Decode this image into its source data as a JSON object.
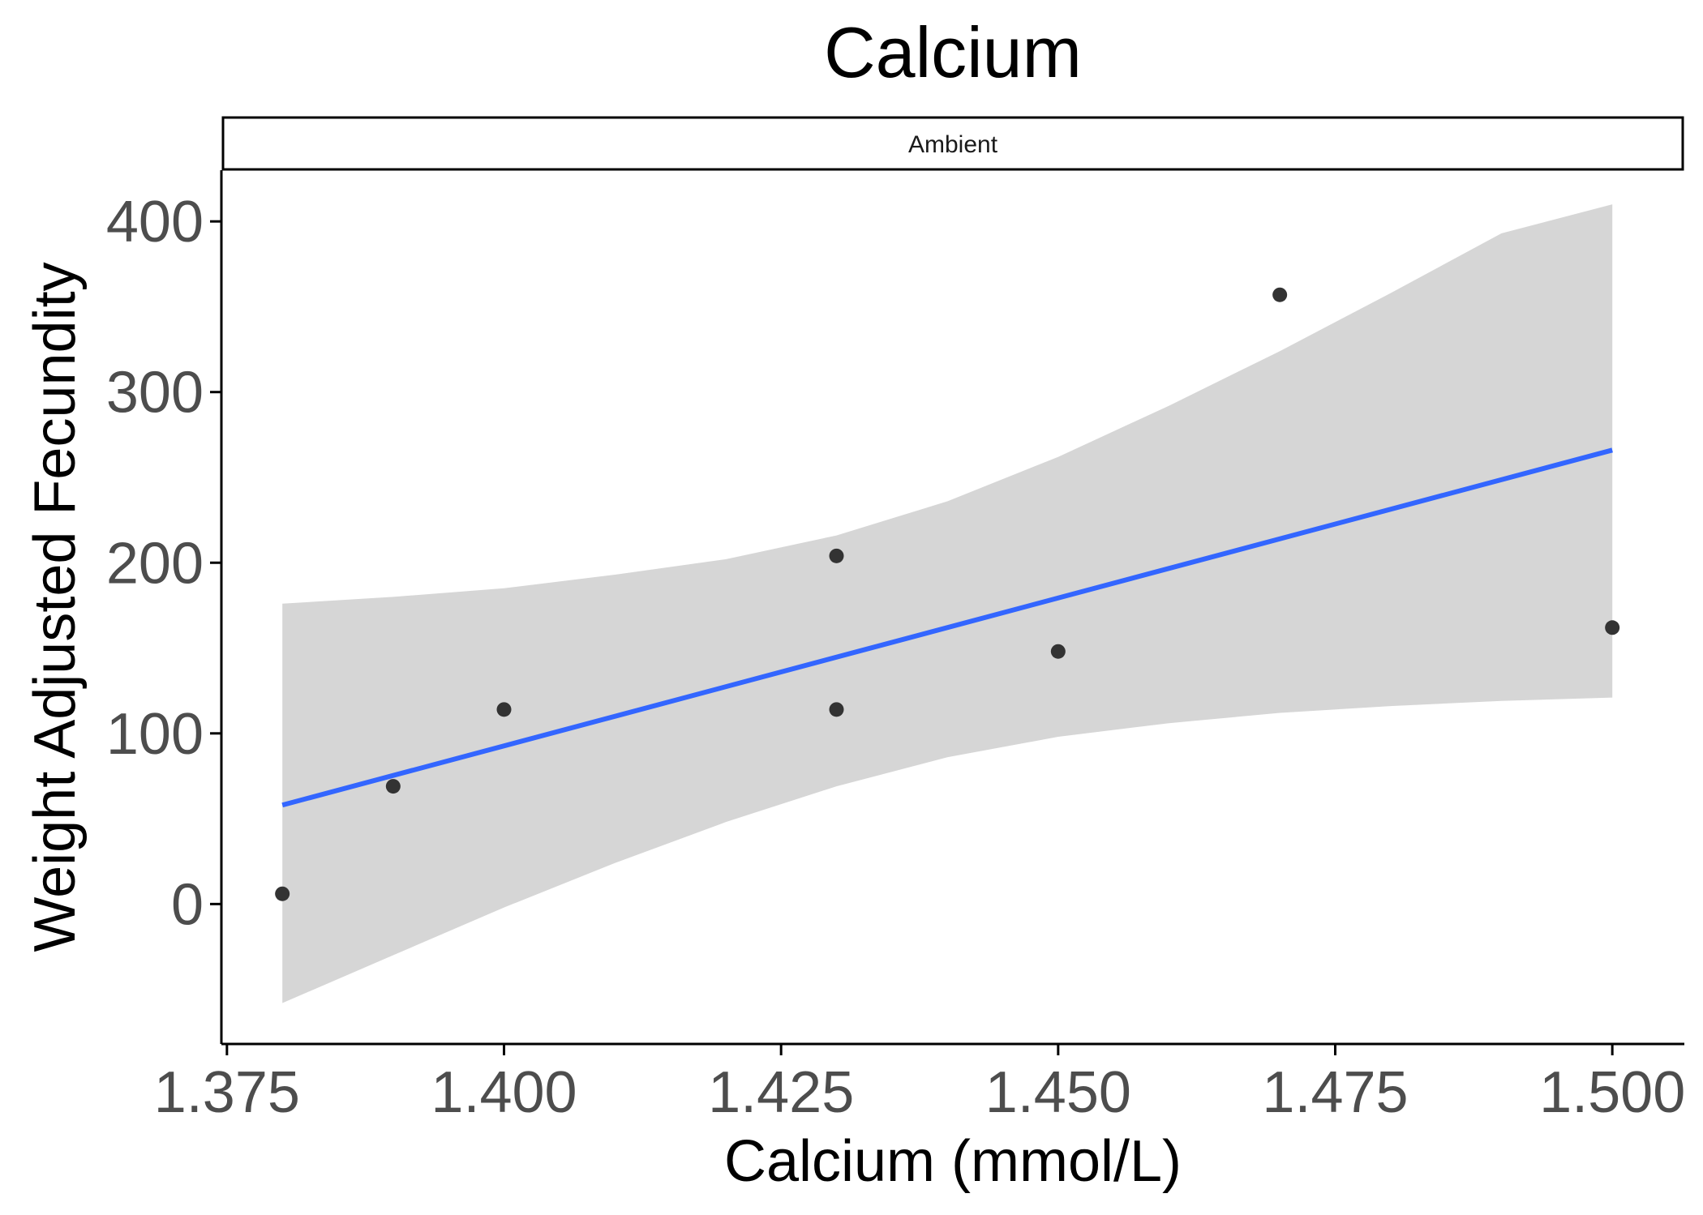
{
  "chart_data": {
    "type": "scatter",
    "title": "Calcium",
    "facet": "Ambient",
    "xlabel": "Calcium (mmol/L)",
    "ylabel": "Weight Adjusted Fecundity",
    "xlim": [
      1.3745,
      1.5065
    ],
    "ylim": [
      -82,
      430
    ],
    "x_ticks": [
      1.375,
      1.4,
      1.425,
      1.45,
      1.475,
      1.5
    ],
    "x_tick_labels": [
      "1.375",
      "1.400",
      "1.425",
      "1.450",
      "1.475",
      "1.500"
    ],
    "y_ticks": [
      0,
      100,
      200,
      300,
      400
    ],
    "y_tick_labels": [
      "0",
      "100",
      "200",
      "300",
      "400"
    ],
    "grid": false,
    "points": [
      {
        "x": 1.38,
        "y": 6
      },
      {
        "x": 1.39,
        "y": 69
      },
      {
        "x": 1.4,
        "y": 114
      },
      {
        "x": 1.43,
        "y": 204
      },
      {
        "x": 1.43,
        "y": 114
      },
      {
        "x": 1.45,
        "y": 148
      },
      {
        "x": 1.47,
        "y": 357
      },
      {
        "x": 1.5,
        "y": 162
      }
    ],
    "fit_line": {
      "x": [
        1.38,
        1.5
      ],
      "y": [
        58,
        266
      ]
    },
    "confidence_band": {
      "x": [
        1.38,
        1.39,
        1.4,
        1.41,
        1.42,
        1.43,
        1.44,
        1.45,
        1.46,
        1.47,
        1.48,
        1.49,
        1.5
      ],
      "upper": [
        176,
        180,
        185,
        193,
        202,
        216,
        236,
        262,
        292,
        324,
        358,
        393,
        410
      ],
      "lower": [
        -58,
        -30,
        -2,
        24,
        48,
        69,
        86,
        98,
        106,
        112,
        116,
        119,
        121
      ]
    },
    "colors": {
      "points": "#333333",
      "fit_line": "#3366ff",
      "band": "#d6d6d6",
      "axis": "#000000"
    }
  }
}
